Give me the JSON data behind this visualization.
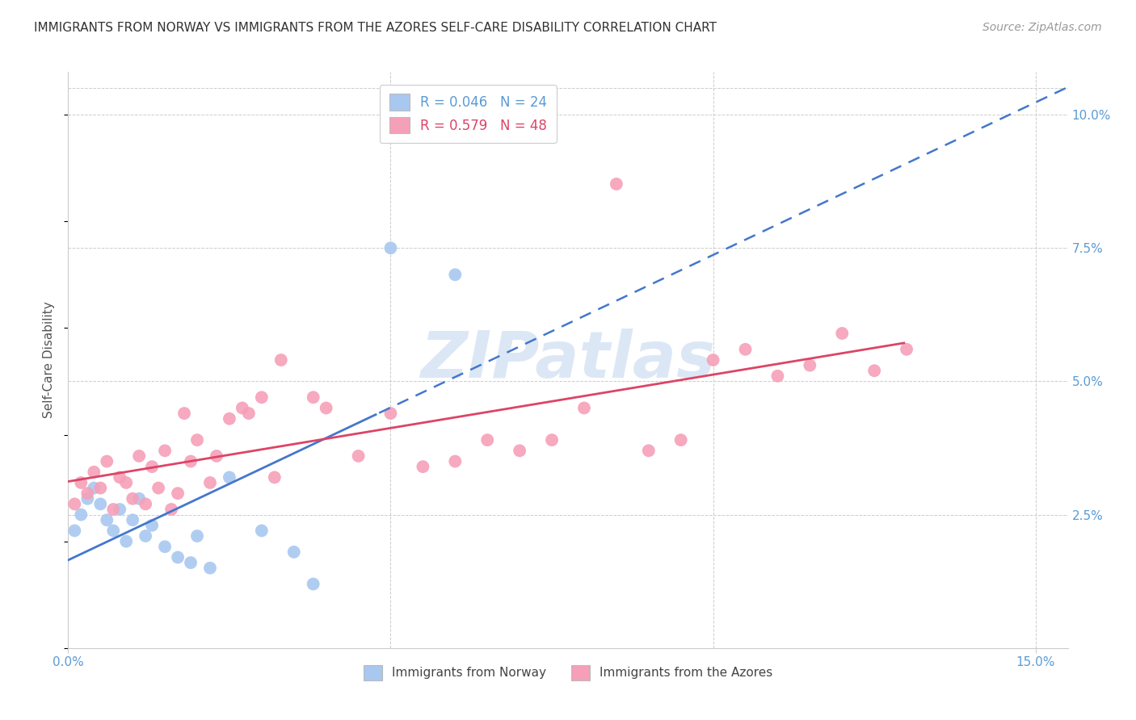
{
  "title": "IMMIGRANTS FROM NORWAY VS IMMIGRANTS FROM THE AZORES SELF-CARE DISABILITY CORRELATION CHART",
  "source": "Source: ZipAtlas.com",
  "ylabel": "Self-Care Disability",
  "xlim": [
    0.0,
    0.155
  ],
  "ylim": [
    0.0,
    0.108
  ],
  "norway_color": "#a8c8f0",
  "azores_color": "#f5a0b8",
  "norway_line_color": "#4477cc",
  "azores_line_color": "#dd4466",
  "background_color": "#ffffff",
  "grid_color": "#cccccc",
  "watermark_text": "ZIPatlas",
  "watermark_color": "#c5d8f0",
  "norway_x": [
    0.001,
    0.002,
    0.003,
    0.004,
    0.005,
    0.006,
    0.007,
    0.008,
    0.009,
    0.01,
    0.011,
    0.012,
    0.013,
    0.015,
    0.017,
    0.019,
    0.02,
    0.022,
    0.025,
    0.03,
    0.035,
    0.038,
    0.05,
    0.06
  ],
  "norway_y": [
    0.022,
    0.025,
    0.028,
    0.03,
    0.027,
    0.024,
    0.022,
    0.026,
    0.02,
    0.024,
    0.028,
    0.021,
    0.023,
    0.019,
    0.017,
    0.016,
    0.021,
    0.015,
    0.032,
    0.022,
    0.018,
    0.012,
    0.075,
    0.07
  ],
  "azores_x": [
    0.001,
    0.002,
    0.003,
    0.004,
    0.005,
    0.006,
    0.007,
    0.008,
    0.009,
    0.01,
    0.011,
    0.012,
    0.013,
    0.014,
    0.015,
    0.016,
    0.017,
    0.018,
    0.019,
    0.02,
    0.022,
    0.023,
    0.025,
    0.027,
    0.028,
    0.03,
    0.032,
    0.033,
    0.038,
    0.04,
    0.045,
    0.05,
    0.055,
    0.06,
    0.065,
    0.07,
    0.075,
    0.08,
    0.085,
    0.09,
    0.095,
    0.1,
    0.105,
    0.11,
    0.115,
    0.12,
    0.125,
    0.13
  ],
  "azores_y": [
    0.027,
    0.031,
    0.029,
    0.033,
    0.03,
    0.035,
    0.026,
    0.032,
    0.031,
    0.028,
    0.036,
    0.027,
    0.034,
    0.03,
    0.037,
    0.026,
    0.029,
    0.044,
    0.035,
    0.039,
    0.031,
    0.036,
    0.043,
    0.045,
    0.044,
    0.047,
    0.032,
    0.054,
    0.047,
    0.045,
    0.036,
    0.044,
    0.034,
    0.035,
    0.039,
    0.037,
    0.039,
    0.045,
    0.087,
    0.037,
    0.039,
    0.054,
    0.056,
    0.051,
    0.053,
    0.059,
    0.052,
    0.056
  ]
}
